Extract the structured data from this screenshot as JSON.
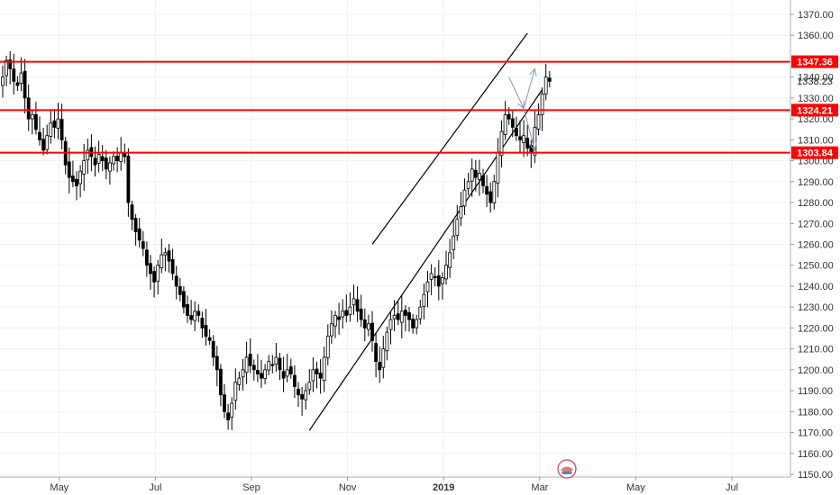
{
  "chart_data": {
    "type": "candlestick",
    "title": "",
    "y_axis": {
      "min": 1150,
      "max": 1375,
      "ticks": [
        "1150.00",
        "1160.00",
        "1170.00",
        "1180.00",
        "1190.00",
        "1200.00",
        "1210.00",
        "1220.00",
        "1230.00",
        "1240.00",
        "1250.00",
        "1260.00",
        "1270.00",
        "1280.00",
        "1290.00",
        "1300.00",
        "1310.00",
        "1320.00",
        "1330.00",
        "1340.00",
        "1360.00",
        "1370.00"
      ],
      "tick_values": [
        1150,
        1160,
        1170,
        1180,
        1190,
        1200,
        1210,
        1220,
        1230,
        1240,
        1250,
        1260,
        1270,
        1280,
        1290,
        1300,
        1310,
        1320,
        1330,
        1340,
        1360,
        1370
      ]
    },
    "x_axis": {
      "labels": [
        "May",
        "Jul",
        "Sep",
        "Nov",
        "2019",
        "Mar",
        "May",
        "Jul"
      ],
      "bold": [
        false,
        false,
        false,
        false,
        true,
        false,
        false,
        false
      ],
      "label_bar_index": [
        8,
        34,
        60,
        86,
        112,
        138,
        164,
        190
      ]
    },
    "grid": true,
    "horizontal_levels": [
      {
        "value": 1347.36,
        "label": "1347.36",
        "color": "#ff0000"
      },
      {
        "value": 1324.21,
        "label": "1324.21",
        "color": "#ff0000"
      },
      {
        "value": 1303.84,
        "label": "1303.84",
        "color": "#ff0000"
      }
    ],
    "last_price": {
      "value": 1338.23,
      "label": "1338.23"
    },
    "channel": {
      "upper": [
        {
          "bar": 100,
          "price": 1260
        },
        {
          "bar": 142,
          "price": 1361
        }
      ],
      "lower": [
        {
          "bar": 83,
          "price": 1171
        },
        {
          "bar": 146,
          "price": 1334
        }
      ]
    },
    "projection_arrows": [
      {
        "from": {
          "bar": 137,
          "price": 1340
        },
        "to": {
          "bar": 141,
          "price": 1325
        }
      },
      {
        "from": {
          "bar": 141,
          "price": 1325
        },
        "to": {
          "bar": 144,
          "price": 1344
        }
      },
      {
        "from": {
          "bar": 141,
          "price": 1325
        },
        "to": {
          "bar": 144,
          "price": 1305
        }
      }
    ],
    "colors": {
      "up": "#ffffff",
      "down": "#000000",
      "wick": "#000000",
      "channel": "#000000",
      "arrow": "#8896b8",
      "level": "#ff0000"
    },
    "close": [
      1340,
      1348,
      1344,
      1338,
      1336,
      1342,
      1330,
      1320,
      1322,
      1315,
      1310,
      1305,
      1312,
      1318,
      1316,
      1320,
      1310,
      1298,
      1292,
      1290,
      1288,
      1295,
      1300,
      1305,
      1302,
      1298,
      1303,
      1300,
      1296,
      1299,
      1302,
      1300,
      1304,
      1302,
      1280,
      1272,
      1266,
      1262,
      1258,
      1250,
      1246,
      1242,
      1250,
      1255,
      1256,
      1252,
      1246,
      1240,
      1236,
      1230,
      1226,
      1224,
      1228,
      1226,
      1220,
      1216,
      1214,
      1206,
      1200,
      1188,
      1180,
      1176,
      1184,
      1194,
      1196,
      1200,
      1206,
      1202,
      1200,
      1198,
      1196,
      1200,
      1204,
      1202,
      1206,
      1200,
      1196,
      1200,
      1198,
      1192,
      1188,
      1186,
      1190,
      1194,
      1200,
      1198,
      1196,
      1206,
      1216,
      1222,
      1226,
      1224,
      1228,
      1226,
      1230,
      1234,
      1228,
      1224,
      1220,
      1222,
      1214,
      1204,
      1200,
      1210,
      1218,
      1224,
      1226,
      1224,
      1228,
      1226,
      1224,
      1220,
      1224,
      1230,
      1236,
      1242,
      1246,
      1244,
      1240,
      1244,
      1250,
      1256,
      1264,
      1272,
      1278,
      1286,
      1290,
      1296,
      1292,
      1294,
      1288,
      1284,
      1280,
      1290,
      1304,
      1314,
      1322,
      1320,
      1316,
      1312,
      1310,
      1312,
      1306,
      1304,
      1316,
      1322,
      1332,
      1340,
      1338
    ]
  }
}
